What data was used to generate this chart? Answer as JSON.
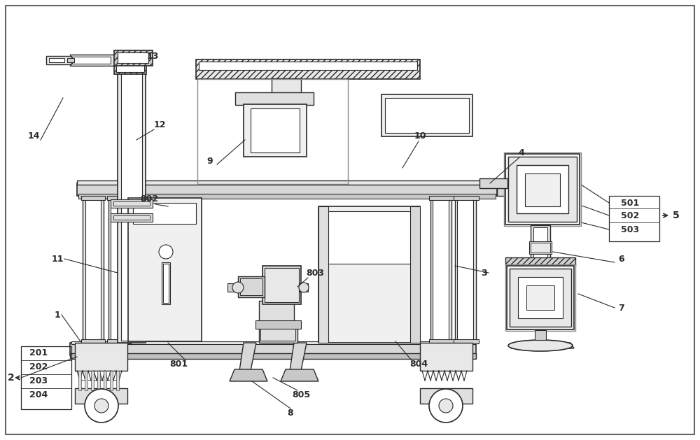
{
  "bg_color": "#ffffff",
  "lc": "#2a2a2a",
  "lc2": "#555555",
  "fg": "#e8e8e8",
  "fg2": "#d0d0d0",
  "fg3": "#f4f4f4",
  "white": "#ffffff",
  "border_lw": 1.5,
  "fig_w": 10.0,
  "fig_h": 6.29
}
